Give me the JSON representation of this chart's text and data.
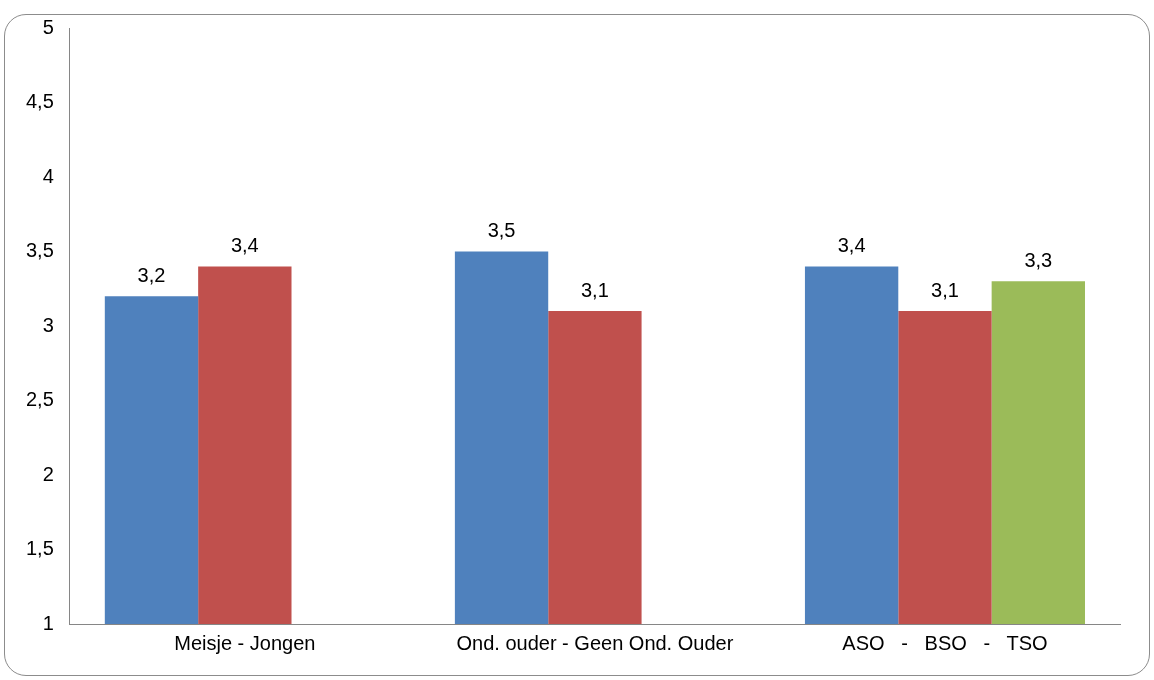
{
  "chart_data": {
    "type": "bar",
    "categories": [
      "Meisje - Jongen",
      "Ond. ouder - Geen Ond. Ouder",
      "ASO   -   BSO   -   TSO"
    ],
    "series": [
      {
        "color": "#4f81bd",
        "values": [
          3.2,
          3.5,
          3.4
        ],
        "value_labels": [
          "3,2",
          "3,5",
          "3,4"
        ]
      },
      {
        "color": "#c0504d",
        "values": [
          3.4,
          3.1,
          3.1
        ],
        "value_labels": [
          "3,4",
          "3,1",
          "3,1"
        ]
      },
      {
        "color": "#9bbb59",
        "values": [
          null,
          null,
          3.3
        ],
        "value_labels": [
          null,
          null,
          "3,3"
        ]
      }
    ],
    "ylim": [
      1,
      5
    ],
    "yticks": [
      1,
      {
        "value": 1.5,
        "label": "1,5"
      },
      2,
      {
        "value": 2.5,
        "label": "2,5"
      },
      3,
      {
        "value": 3.5,
        "label": "3,5"
      },
      4,
      {
        "value": 4.5,
        "label": "4,5"
      },
      5
    ],
    "grid": false,
    "legend": false
  }
}
